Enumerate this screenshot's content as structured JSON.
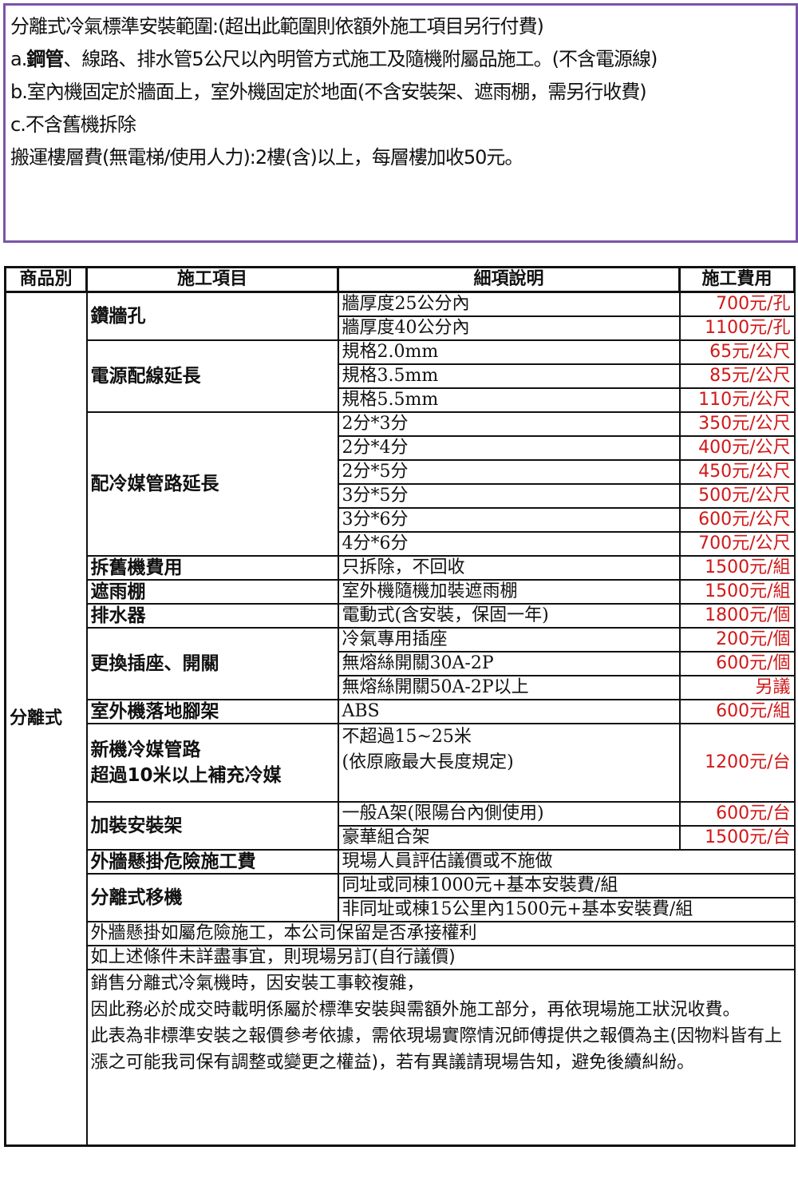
{
  "scope": {
    "lines": [
      "分離式冷氣標準安裝範圍:(超出此範圍則依額外施工項目另行付費)",
      "a.",
      "鋼管",
      "、線路、排水管5公尺以內明管方式施工及隨機附屬品施工。(不含電源線)",
      "b.室內機固定於牆面上，室外機固定於地面(不含安裝架、遮雨棚，需另行收費)",
      "c.不含舊機拆除",
      "搬運樓層費(無電梯/使用人力):2樓(含)以上，每層樓加收50元。"
    ]
  },
  "table": {
    "headers": [
      "商品別",
      "施工項目",
      "細項說明",
      "施工費用"
    ],
    "product": "分離式",
    "groups": [
      {
        "item": "鑽牆孔",
        "rows": [
          [
            "牆厚度25公分內",
            "700元/孔"
          ],
          [
            "牆厚度40公分內",
            "1100元/孔"
          ]
        ]
      },
      {
        "item": "電源配線延長",
        "rows": [
          [
            "規格2.0mm",
            "65元/公尺"
          ],
          [
            "規格3.5mm",
            "85元/公尺"
          ],
          [
            "規格5.5mm",
            "110元/公尺"
          ]
        ]
      },
      {
        "item": "配冷媒管路延長",
        "rows": [
          [
            "2分*3分",
            "350元/公尺"
          ],
          [
            "2分*4分",
            "400元/公尺"
          ],
          [
            "2分*5分",
            "450元/公尺"
          ],
          [
            "3分*5分",
            "500元/公尺"
          ],
          [
            "3分*6分",
            "600元/公尺"
          ],
          [
            "4分*6分",
            "700元/公尺"
          ]
        ]
      },
      {
        "item": "拆舊機費用",
        "rows": [
          [
            "只拆除，不回收",
            "1500元/組"
          ]
        ]
      },
      {
        "item": "遮雨棚",
        "rows": [
          [
            "室外機隨機加裝遮雨棚",
            "1500元/組"
          ]
        ]
      },
      {
        "item": "排水器",
        "rows": [
          [
            "電動式(含安裝，保固一年)",
            "1800元/個"
          ]
        ]
      },
      {
        "item": "更換插座、開關",
        "rows": [
          [
            "冷氣專用插座",
            "200元/個"
          ],
          [
            "無熔絲開關30A-2P",
            "600元/個"
          ],
          [
            "無熔絲開關50A-2P以上",
            "另議"
          ]
        ]
      },
      {
        "item": "室外機落地腳架",
        "rows": [
          [
            "ABS",
            "600元/組"
          ]
        ]
      },
      {
        "item": "新機冷媒管路\n超過10米以上補充冷媒",
        "rows": [
          [
            "不超過15~25米\n(依原廠最大長度規定)",
            "1200元/台"
          ]
        ]
      },
      {
        "item": "加裝安裝架",
        "rows": [
          [
            "一般A架(限陽台內側使用)",
            "600元/台"
          ],
          [
            "豪華組合架",
            "1500元/台"
          ]
        ]
      }
    ],
    "wide_groups": [
      {
        "item": "外牆懸掛危險施工費",
        "rows": [
          "現場人員評估議價或不施做"
        ]
      },
      {
        "item": "分離式移機",
        "rows": [
          "同址或同棟1000元+基本安裝費/組",
          "非同址或棟15公里內1500元+基本安裝費/組"
        ]
      }
    ],
    "notes": [
      "外牆懸掛如屬危險施工，本公司保留是否承接權利",
      "如上述條件未詳盡事宜，則現場另訂(自行議價)",
      "銷售分離式冷氣機時，因安裝工事較複雜，\n因此務必於成交時載明係屬於標準安裝與需額外施工部分，再依現場施工狀況收費。\n此表為非標準安裝之報價參考依據，需依現場實際情況師傅提供之報價為主(因物料皆有上漲之可能我司保有調整或變更之權益)，若有異議請現場告知，避免後續糾紛。"
    ]
  },
  "colors": {
    "border": "#7a54a8",
    "price": "#d01818"
  }
}
